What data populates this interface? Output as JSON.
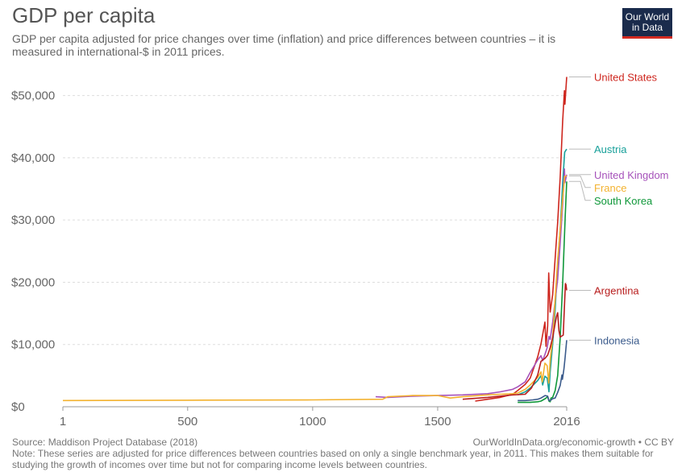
{
  "header": {
    "title": "GDP per capita",
    "subtitle": "GDP per capita adjusted for price changes over time (inflation) and price differences between countries – it is measured in international-$ in 2011 prices."
  },
  "logo": {
    "line1": "Our World",
    "line2": "in Data"
  },
  "footer": {
    "source": "Source: Maddison Project Database (2018)",
    "credit": "OurWorldInData.org/economic-growth • CC BY",
    "note": "Note: These series are adjusted for price differences between countries based on only a single benchmark year, in 2011. This makes them suitable for studying the growth of incomes over time but not for comparing income levels between countries."
  },
  "chart_data": {
    "type": "line",
    "xlim": [
      1,
      2016
    ],
    "ylim": [
      0,
      55000
    ],
    "x_ticks": [
      1,
      500,
      1000,
      1500,
      2016
    ],
    "y_ticks": [
      0,
      10000,
      20000,
      30000,
      40000,
      50000
    ],
    "y_tick_labels": [
      "$0",
      "$10,000",
      "$20,000",
      "$30,000",
      "$40,000",
      "$50,000"
    ],
    "grid": true,
    "legend": "right, labels at line ends",
    "series": [
      {
        "name": "United States",
        "color": "#ce261e",
        "x": [
          1650,
          1700,
          1750,
          1800,
          1820,
          1850,
          1870,
          1900,
          1913,
          1929,
          1933,
          1940,
          1944,
          1950,
          1960,
          1970,
          1980,
          1990,
          2000,
          2007,
          2009,
          2016
        ],
        "y": [
          900,
          1200,
          1500,
          2000,
          2600,
          3600,
          4600,
          8000,
          10100,
          13600,
          9700,
          13000,
          21500,
          15200,
          18000,
          23900,
          29600,
          36800,
          45900,
          50800,
          48600,
          53000
        ]
      },
      {
        "name": "Austria",
        "color": "#18a09a",
        "x": [
          1820,
          1850,
          1870,
          1900,
          1913,
          1920,
          1929,
          1938,
          1945,
          1950,
          1960,
          1970,
          1980,
          1990,
          2000,
          2008,
          2016
        ],
        "y": [
          1900,
          2400,
          3000,
          4200,
          5000,
          3500,
          4900,
          4600,
          2400,
          5600,
          10100,
          15600,
          23100,
          28500,
          36000,
          40900,
          41400
        ]
      },
      {
        "name": "United Kingdom",
        "color": "#a652ba",
        "x": [
          1252,
          1300,
          1400,
          1500,
          1600,
          1700,
          1750,
          1800,
          1820,
          1850,
          1870,
          1900,
          1913,
          1920,
          1929,
          1938,
          1945,
          1950,
          1960,
          1970,
          1980,
          1990,
          2000,
          2007,
          2009,
          2016
        ],
        "y": [
          1600,
          1500,
          1700,
          1800,
          1900,
          2100,
          2400,
          2800,
          3200,
          4000,
          5500,
          7500,
          8200,
          7400,
          8400,
          9500,
          11300,
          10800,
          13600,
          17100,
          20500,
          26300,
          32500,
          38200,
          36000,
          37300
        ]
      },
      {
        "name": "France",
        "color": "#f3b22f",
        "x": [
          1,
          500,
          1000,
          1280,
          1300,
          1400,
          1500,
          1550,
          1600,
          1700,
          1750,
          1800,
          1820,
          1850,
          1870,
          1900,
          1913,
          1918,
          1929,
          1938,
          1944,
          1950,
          1960,
          1970,
          1980,
          1990,
          2000,
          2008,
          2016
        ],
        "y": [
          1000,
          1050,
          1100,
          1200,
          1600,
          1800,
          1800,
          1400,
          1600,
          1900,
          2000,
          2100,
          2200,
          2800,
          3500,
          4700,
          5600,
          4000,
          7000,
          6600,
          3800,
          7500,
          11100,
          17400,
          23700,
          28400,
          33400,
          37000,
          37100
        ]
      },
      {
        "name": "South Korea",
        "color": "#10983a",
        "x": [
          1820,
          1870,
          1900,
          1913,
          1930,
          1940,
          1945,
          1950,
          1953,
          1960,
          1970,
          1980,
          1990,
          2000,
          2010,
          2016
        ],
        "y": [
          700,
          700,
          800,
          900,
          1300,
          1600,
          900,
          800,
          1400,
          1500,
          2600,
          5000,
          11000,
          19800,
          30400,
          36200
        ]
      },
      {
        "name": "Argentina",
        "color": "#b81e1e",
        "x": [
          1600,
          1700,
          1800,
          1850,
          1875,
          1900,
          1913,
          1930,
          1940,
          1950,
          1960,
          1970,
          1975,
          1980,
          1985,
          1990,
          2002,
          2011,
          2013,
          2016
        ],
        "y": [
          1200,
          1500,
          1900,
          2000,
          3000,
          5100,
          7300,
          7800,
          8300,
          9500,
          11100,
          13400,
          14500,
          15100,
          12200,
          11200,
          11500,
          19800,
          19600,
          18700
        ]
      },
      {
        "name": "Indonesia",
        "color": "#3b5b8c",
        "x": [
          1820,
          1850,
          1880,
          1900,
          1913,
          1930,
          1940,
          1945,
          1950,
          1960,
          1970,
          1980,
          1990,
          1997,
          1999,
          2005,
          2010,
          2016
        ],
        "y": [
          1000,
          1000,
          1100,
          1200,
          1400,
          1800,
          1700,
          1000,
          1000,
          1300,
          1400,
          2300,
          3400,
          5100,
          4400,
          6100,
          8000,
          10700
        ]
      }
    ]
  }
}
